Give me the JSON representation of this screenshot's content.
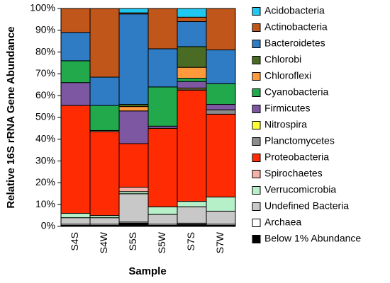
{
  "chart_data": {
    "type": "bar",
    "stacked": true,
    "xlabel": "Sample",
    "ylabel": "Relative 16S rRNA Gene Abundance",
    "ylim": [
      0,
      100
    ],
    "y_tick_labels": [
      "0%",
      "10%",
      "20%",
      "30%",
      "40%",
      "50%",
      "60%",
      "70%",
      "80%",
      "90%",
      "100%"
    ],
    "categories": [
      "S4S",
      "S4W",
      "S5S",
      "S5W",
      "S7S",
      "S7W"
    ],
    "legend_position": "right",
    "series": [
      {
        "name": "Below 1% Abundance",
        "color": "#000000",
        "values": [
          0.5,
          0.5,
          1.5,
          0.5,
          1.0,
          0.5
        ]
      },
      {
        "name": "Archaea",
        "color": "#ffffff",
        "values": [
          0.5,
          0.5,
          0.5,
          0.5,
          0.5,
          0.5
        ]
      },
      {
        "name": "Undefined Bacteria",
        "color": "#c8c8c8",
        "values": [
          3.0,
          3.0,
          13.0,
          4.5,
          7.5,
          6.0
        ]
      },
      {
        "name": "Verrucomicrobia",
        "color": "#b6f0c8",
        "values": [
          2.0,
          1.0,
          1.0,
          3.5,
          2.5,
          6.5
        ]
      },
      {
        "name": "Spirochaetes",
        "color": "#f6b0a8",
        "values": [
          0.0,
          0.0,
          2.0,
          0.0,
          0.0,
          0.0
        ]
      },
      {
        "name": "Proteobacteria",
        "color": "#fe2b03",
        "values": [
          49.5,
          38.5,
          20.0,
          36.0,
          51.0,
          38.0
        ]
      },
      {
        "name": "Planctomycetes",
        "color": "#8c8c8c",
        "values": [
          0.0,
          0.5,
          0.0,
          0.0,
          0.5,
          2.0
        ]
      },
      {
        "name": "Nitrospira",
        "color": "#ffff33",
        "values": [
          0.0,
          0.0,
          0.0,
          0.0,
          0.5,
          0.0
        ]
      },
      {
        "name": "Firmicutes",
        "color": "#7e57a2",
        "values": [
          10.5,
          0.0,
          15.0,
          1.0,
          3.0,
          2.5
        ]
      },
      {
        "name": "Cyanobacteria",
        "color": "#21a94b",
        "values": [
          10.0,
          11.5,
          0.0,
          18.0,
          1.5,
          9.5
        ]
      },
      {
        "name": "Chloroflexi",
        "color": "#ff9a3c",
        "values": [
          0.0,
          0.0,
          2.0,
          0.0,
          5.0,
          0.0
        ]
      },
      {
        "name": "Chlorobi",
        "color": "#4a6b24",
        "values": [
          0.0,
          0.0,
          1.0,
          0.0,
          9.5,
          0.0
        ]
      },
      {
        "name": "Bacteroidetes",
        "color": "#2f7bc4",
        "values": [
          13.0,
          13.0,
          41.5,
          17.5,
          11.5,
          15.5
        ]
      },
      {
        "name": "Actinobacteria",
        "color": "#c0561a",
        "values": [
          11.0,
          31.5,
          0.5,
          18.5,
          2.0,
          19.0
        ]
      },
      {
        "name": "Acidobacteria",
        "color": "#1fc8f0",
        "values": [
          0.0,
          0.0,
          2.0,
          0.0,
          4.0,
          0.0
        ]
      }
    ]
  }
}
